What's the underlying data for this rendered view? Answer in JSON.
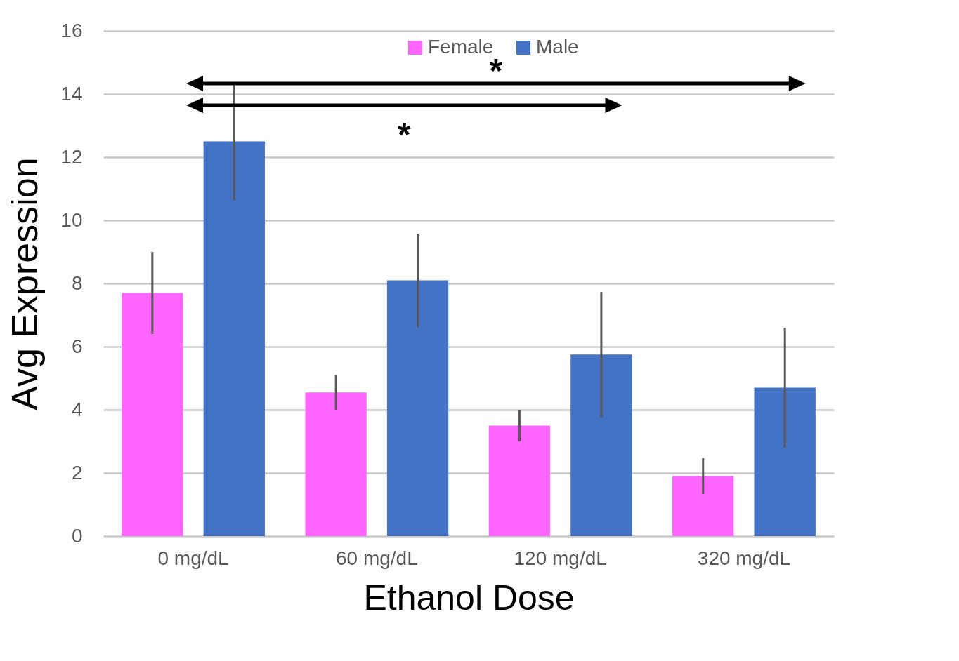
{
  "chart_data": {
    "type": "bar",
    "xlabel": "Ethanol Dose",
    "ylabel": "Avg Expression",
    "categories": [
      "0 mg/dL",
      "60 mg/dL",
      "120 mg/dL",
      "320 mg/dL"
    ],
    "series": [
      {
        "name": "Female",
        "color": "#ff66ff",
        "values": [
          7.7,
          4.55,
          3.5,
          1.9
        ],
        "errors": [
          1.3,
          0.55,
          0.5,
          0.57
        ]
      },
      {
        "name": "Male",
        "color": "#4472c4",
        "values": [
          12.5,
          8.1,
          5.75,
          4.7
        ],
        "errors": [
          1.87,
          1.47,
          1.98,
          1.9
        ]
      }
    ],
    "ylim": [
      0,
      16
    ],
    "yticks": [
      0,
      2,
      4,
      6,
      8,
      10,
      12,
      14,
      16
    ],
    "grid": "y",
    "legend": "top",
    "annotations": [
      "*",
      "*"
    ]
  }
}
